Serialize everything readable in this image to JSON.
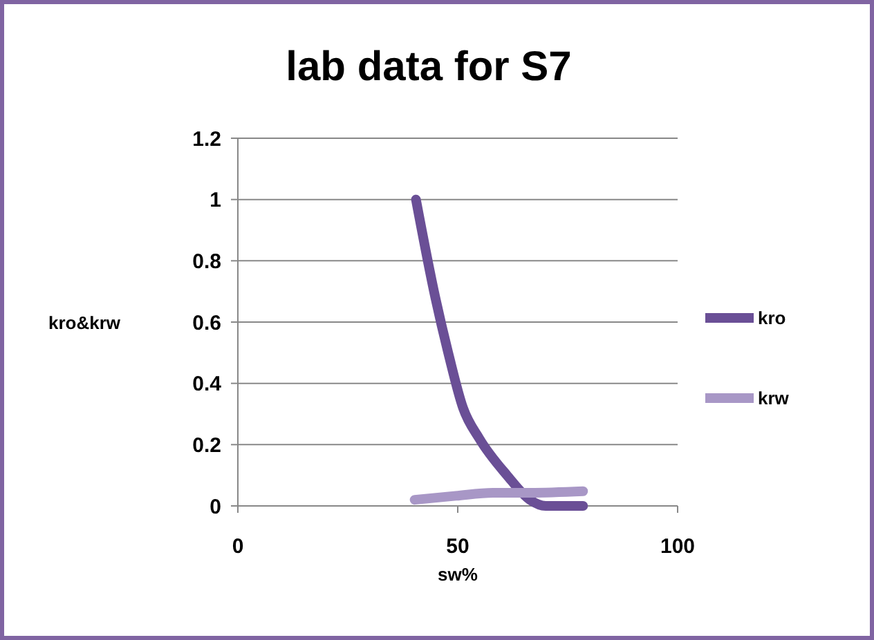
{
  "chart_data": {
    "type": "line",
    "title": "lab data for S7",
    "xlabel": "sw%",
    "ylabel": "kro&krw",
    "xlim": [
      0,
      100
    ],
    "xticks": [
      0,
      50,
      100
    ],
    "ylim": [
      0,
      1.2
    ],
    "yticks": [
      0,
      0.2,
      0.4,
      0.6,
      0.8,
      1,
      1.2
    ],
    "grid": "y",
    "legend": "right",
    "marker": "none",
    "line_style": "solid",
    "series": [
      {
        "name": "kro",
        "color": "#6a4f96",
        "x": [
          40.5,
          44.9,
          48,
          51.2,
          54.9,
          61.2,
          66.4,
          70,
          78.5
        ],
        "values": [
          1,
          0.68,
          0.49,
          0.32,
          0.22,
          0.1,
          0.02,
          0,
          0
        ]
      },
      {
        "name": "krw",
        "color": "#a897c6",
        "x": [
          40.2,
          49.6,
          58,
          66.4,
          78.5
        ],
        "values": [
          0.02,
          0.033,
          0.043,
          0.043,
          0.048
        ]
      }
    ]
  }
}
